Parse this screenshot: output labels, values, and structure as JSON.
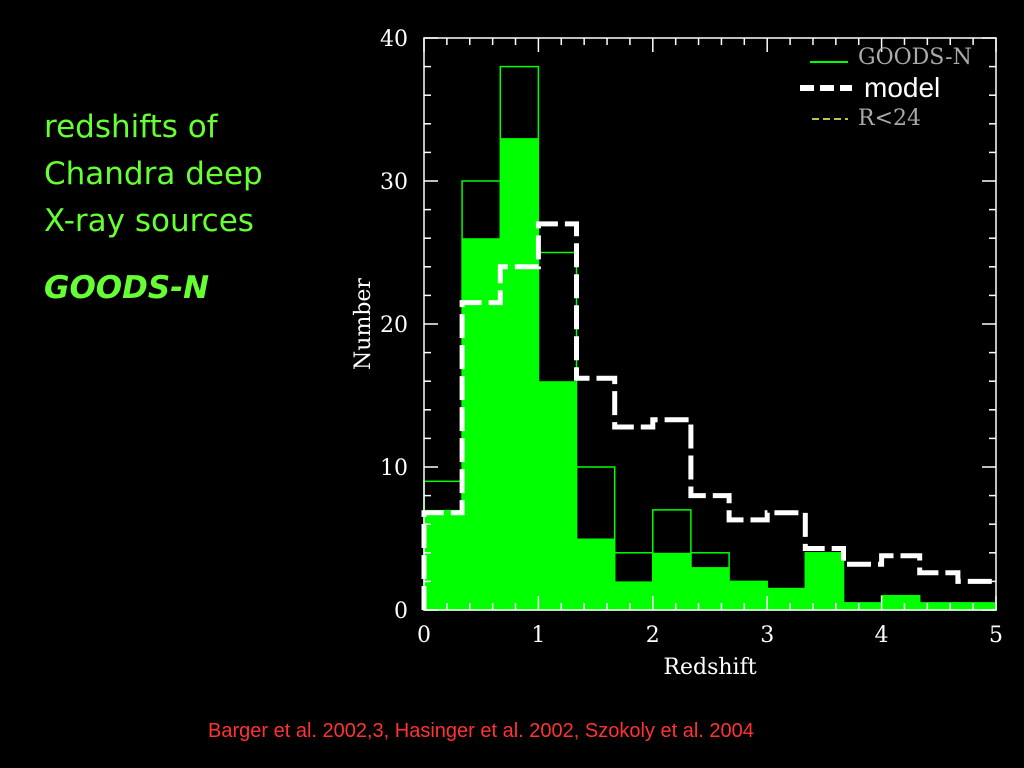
{
  "slide": {
    "title_lines": [
      "redshifts of",
      "Chandra deep",
      "X-ray sources"
    ],
    "subtitle": "GOODS-N",
    "caption": "Barger et al. 2002,3, Hasinger et al. 2002, Szokoly et al. 2004"
  },
  "chart_data": {
    "type": "bar",
    "xlabel": "Redshift",
    "ylabel": "Number",
    "xlim": [
      0,
      5
    ],
    "ylim": [
      0,
      40
    ],
    "x_ticks": [
      0,
      1,
      2,
      3,
      4,
      5
    ],
    "y_ticks": [
      0,
      10,
      20,
      30,
      40
    ],
    "x_tick_labels": [
      "0",
      "1",
      "2",
      "3",
      "4",
      "5"
    ],
    "y_tick_labels": [
      "0",
      "10",
      "20",
      "30",
      "40"
    ],
    "bin_edges": [
      0,
      0.333,
      0.667,
      1.0,
      1.333,
      1.667,
      2.0,
      2.333,
      2.667,
      3.0,
      3.333,
      3.667,
      4.0,
      4.333,
      4.667,
      5.0
    ],
    "series": [
      {
        "name": "GOODS-N",
        "style": "outline",
        "color": "#00ff00",
        "values": [
          9,
          30,
          38,
          25,
          10,
          4,
          7,
          4,
          2,
          1.5,
          4,
          0.5,
          1,
          0.5,
          0.5
        ]
      },
      {
        "name": "R<24",
        "style": "filled",
        "color": "#00ff00",
        "values": [
          7,
          26,
          33,
          16,
          5,
          2,
          4,
          3,
          2,
          1.5,
          4,
          0.5,
          1,
          0.5,
          0.5
        ]
      },
      {
        "name": "model",
        "style": "dashed",
        "color": "#ffffff",
        "x": [
          0,
          0.333,
          0.333,
          0.667,
          0.667,
          1.0,
          1.0,
          1.333,
          1.333,
          1.667,
          1.667,
          2.0,
          2.0,
          2.333,
          2.333,
          2.667,
          2.667,
          3.0,
          3.0,
          3.333,
          3.333,
          3.667,
          3.667,
          4.0,
          4.0,
          4.333,
          4.333,
          4.667,
          4.667,
          5.0
        ],
        "y": [
          6.8,
          6.8,
          21.5,
          21.5,
          24,
          24,
          27,
          27,
          16.2,
          16.2,
          12.8,
          12.8,
          13.3,
          13.3,
          8,
          8,
          6.3,
          6.3,
          6.8,
          6.8,
          4.3,
          4.3,
          3.2,
          3.2,
          3.8,
          3.8,
          2.6,
          2.6,
          2,
          2
        ]
      }
    ],
    "legend": {
      "position": "top-right",
      "entries": [
        {
          "label": "GOODS-N",
          "style": "solid",
          "color": "#00ff00"
        },
        {
          "label": "model",
          "style": "dashed",
          "color": "#ffffff"
        },
        {
          "label": "R<24",
          "style": "dashed",
          "color": "#ffff66"
        }
      ]
    }
  }
}
